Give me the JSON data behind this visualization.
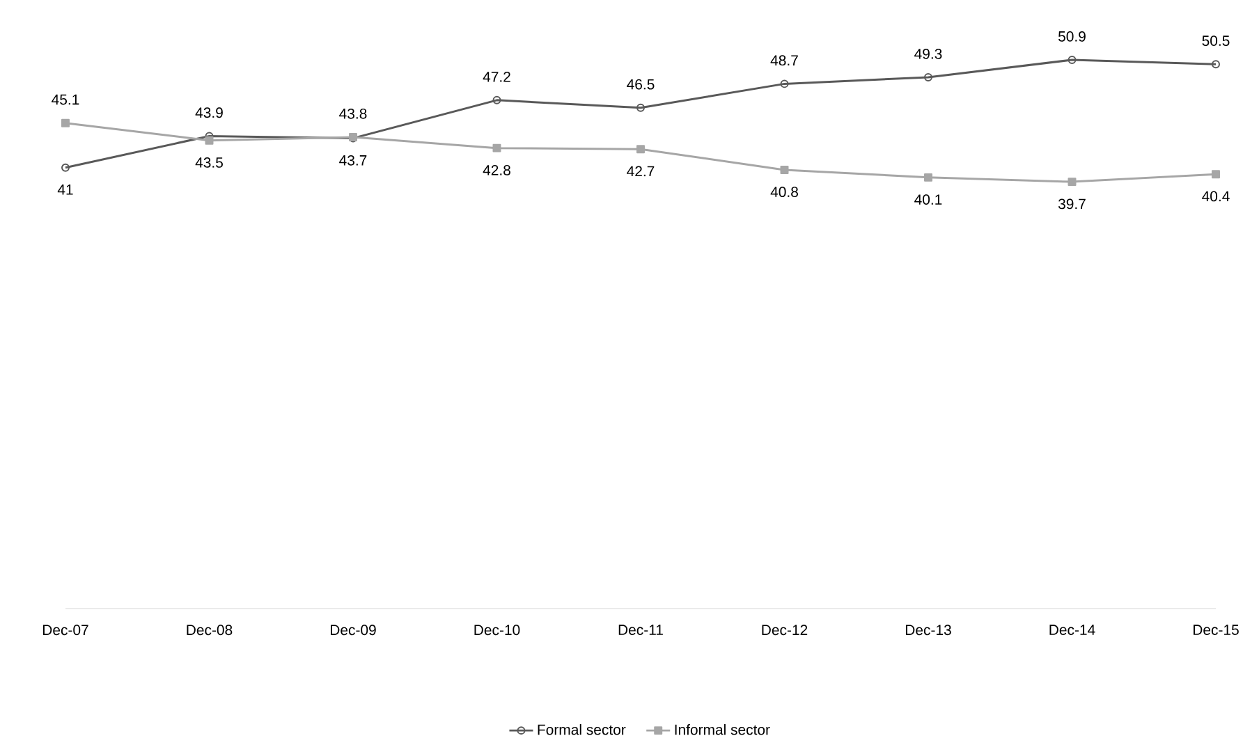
{
  "chart_data": {
    "type": "line",
    "categories": [
      "Dec-07",
      "Dec-08",
      "Dec-09",
      "Dec-10",
      "Dec-11",
      "Dec-12",
      "Dec-13",
      "Dec-14",
      "Dec-15"
    ],
    "series": [
      {
        "name": "Formal sector",
        "color": "#595959",
        "marker": "circle",
        "values": [
          41,
          43.9,
          43.7,
          47.2,
          46.5,
          48.7,
          49.3,
          50.9,
          50.5
        ]
      },
      {
        "name": "Informal sector",
        "color": "#a6a6a6",
        "marker": "square",
        "values": [
          45.1,
          43.5,
          43.8,
          42.8,
          42.7,
          40.8,
          40.1,
          39.7,
          40.4
        ]
      }
    ],
    "data_labels": true,
    "legend": "bottom"
  }
}
